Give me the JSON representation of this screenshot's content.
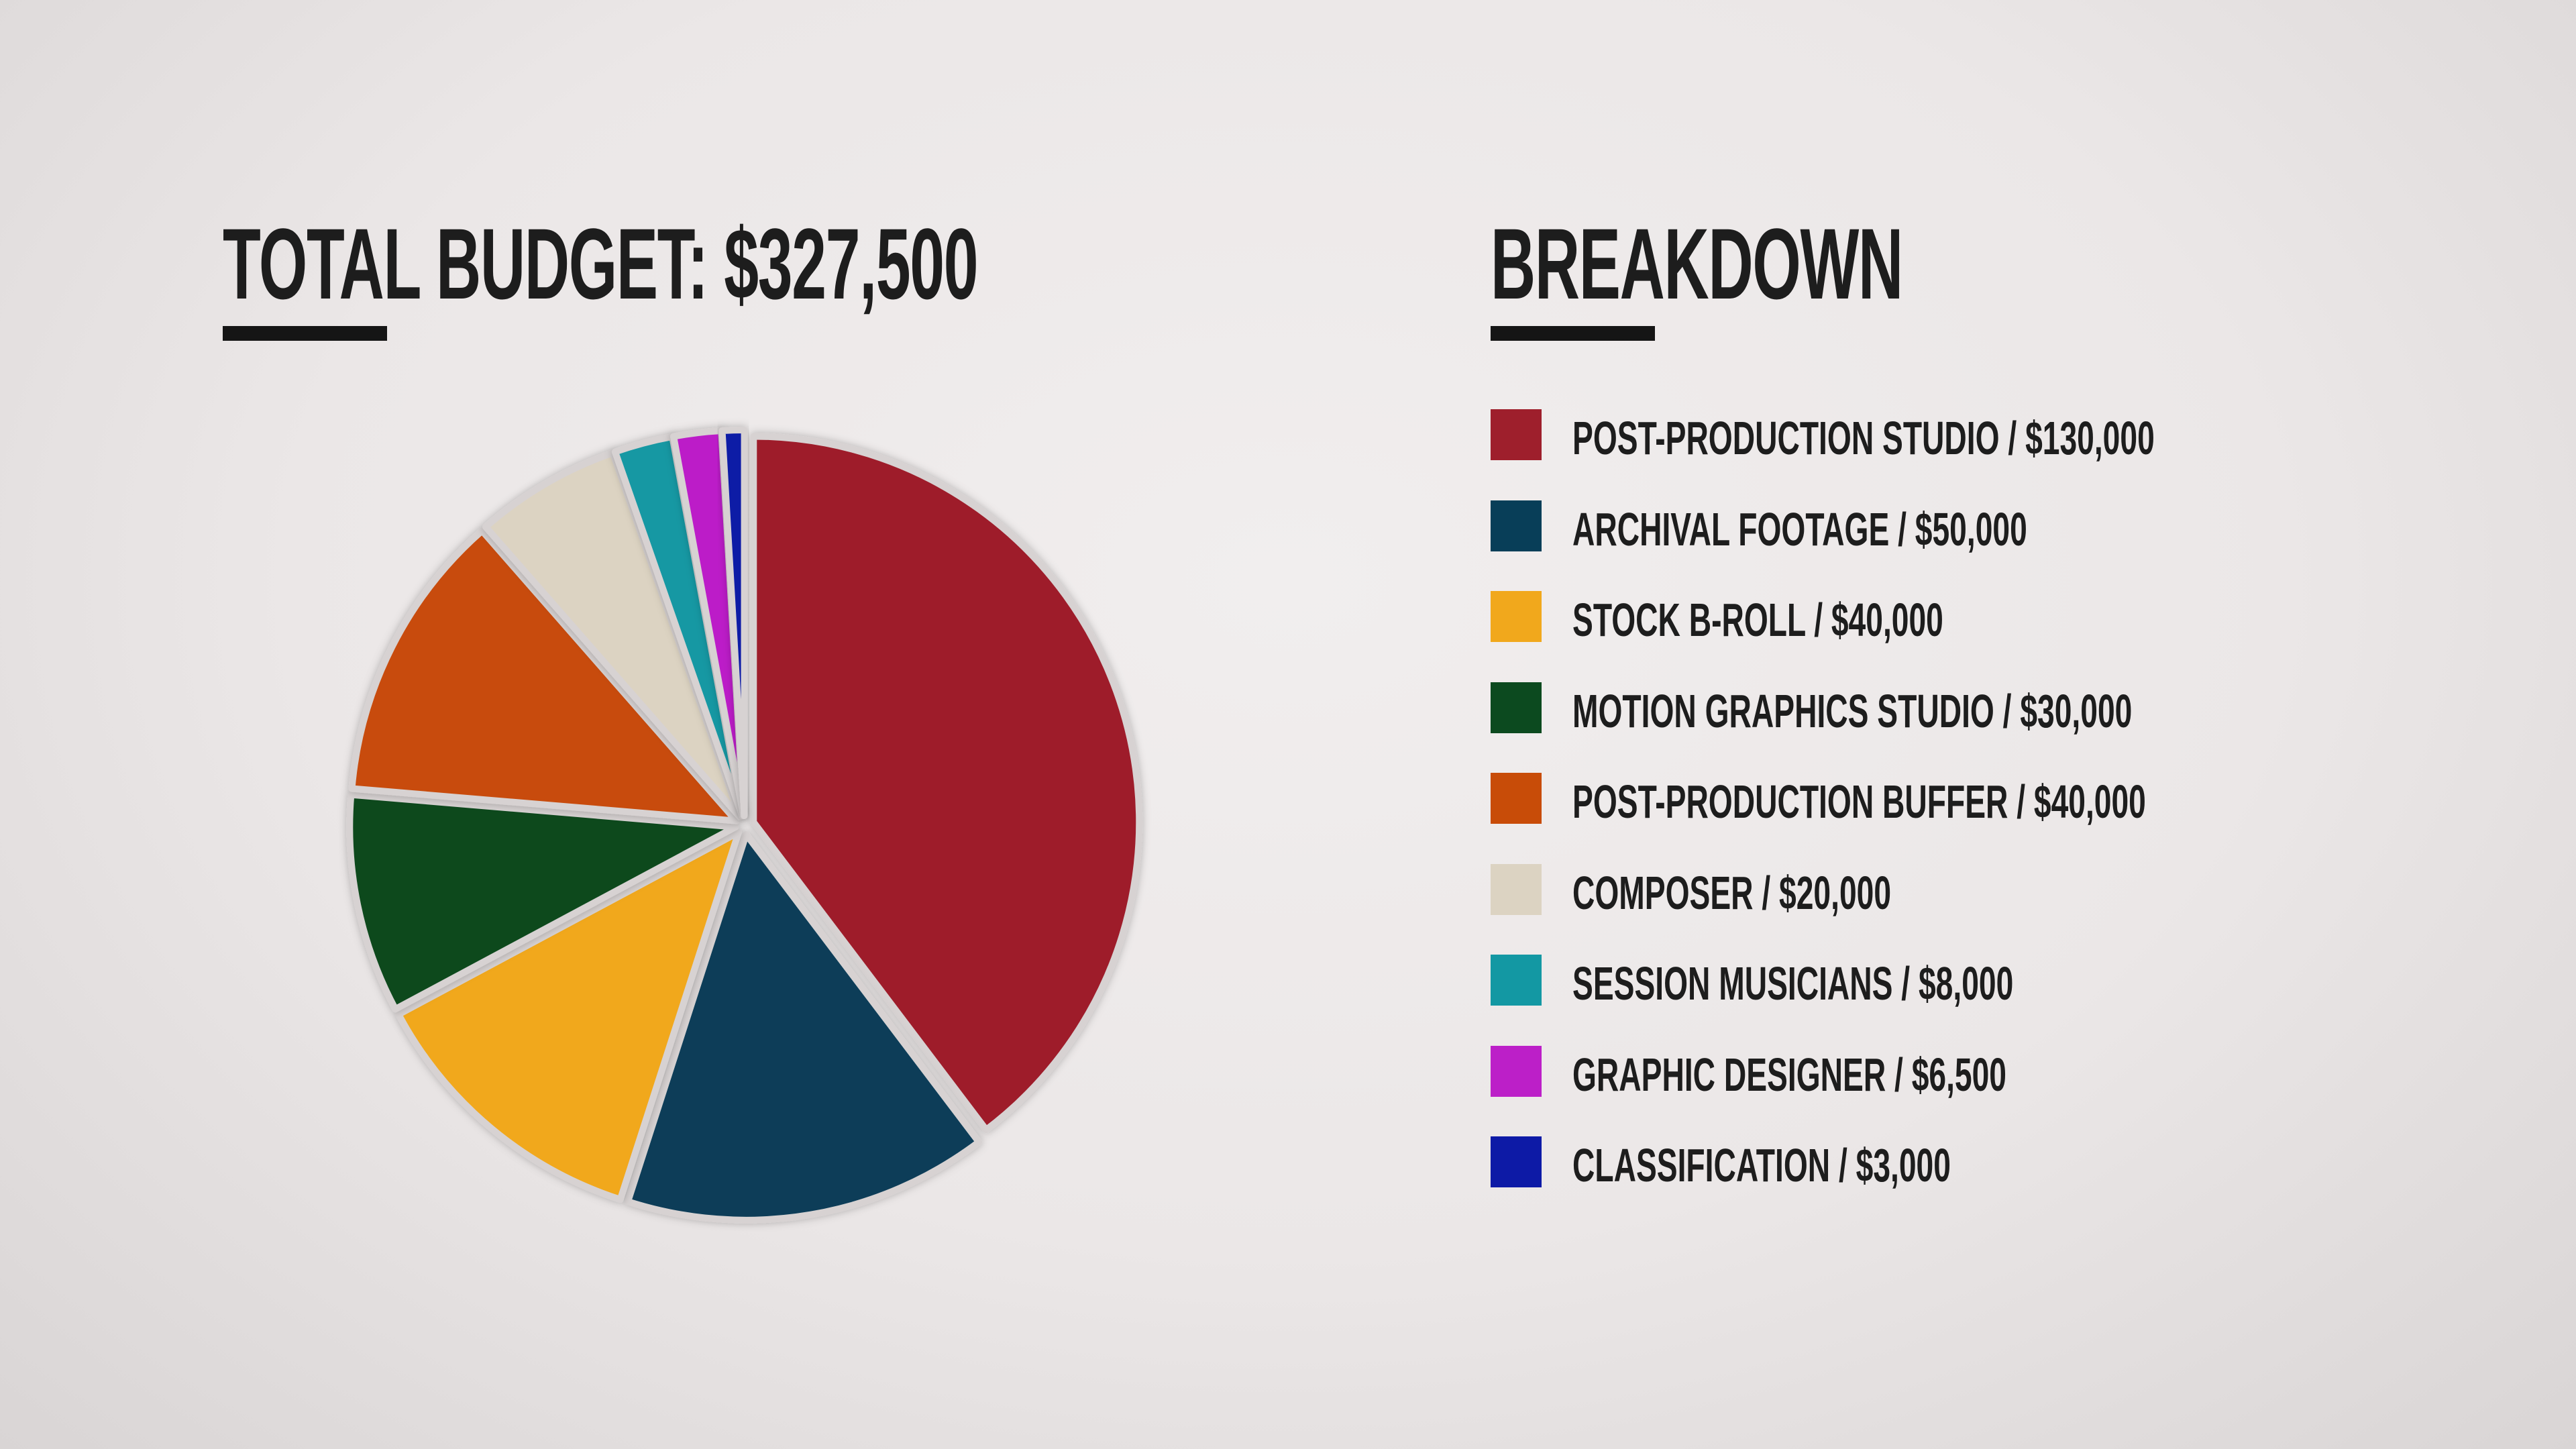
{
  "header": {
    "total_title": "TOTAL BUDGET: $327,500",
    "breakdown_title": "BREAKDOWN"
  },
  "chart_data": {
    "type": "pie",
    "title": "TOTAL BUDGET: $327,500",
    "legend_placement": "right",
    "slices": [
      {
        "label": "POST-PRODUCTION STUDIO / $130,000",
        "value": 130000,
        "color": "#9e1f2c"
      },
      {
        "label": "ARCHIVAL FOOTAGE / $50,000",
        "value": 50000,
        "color": "#083e58"
      },
      {
        "label": "STOCK B-ROLL / $40,000",
        "value": 40000,
        "color": "#f1a81c"
      },
      {
        "label": "MOTION GRAPHICS STUDIO / $30,000",
        "value": 30000,
        "color": "#0c4a1f"
      },
      {
        "label": "POST-PRODUCTION BUFFER / $40,000",
        "value": 40000,
        "color": "#c84c08"
      },
      {
        "label": "COMPOSER / $20,000",
        "value": 20000,
        "color": "#dcd3c2"
      },
      {
        "label": "SESSION MUSICIANS / $8,000",
        "value": 8000,
        "color": "#1398a3"
      },
      {
        "label": "GRAPHIC DESIGNER / $6,500",
        "value": 6500,
        "color": "#bc1fc8"
      },
      {
        "label": "CLASSIFICATION / $3,000",
        "value": 3000,
        "color": "#0d1aa6"
      }
    ]
  }
}
